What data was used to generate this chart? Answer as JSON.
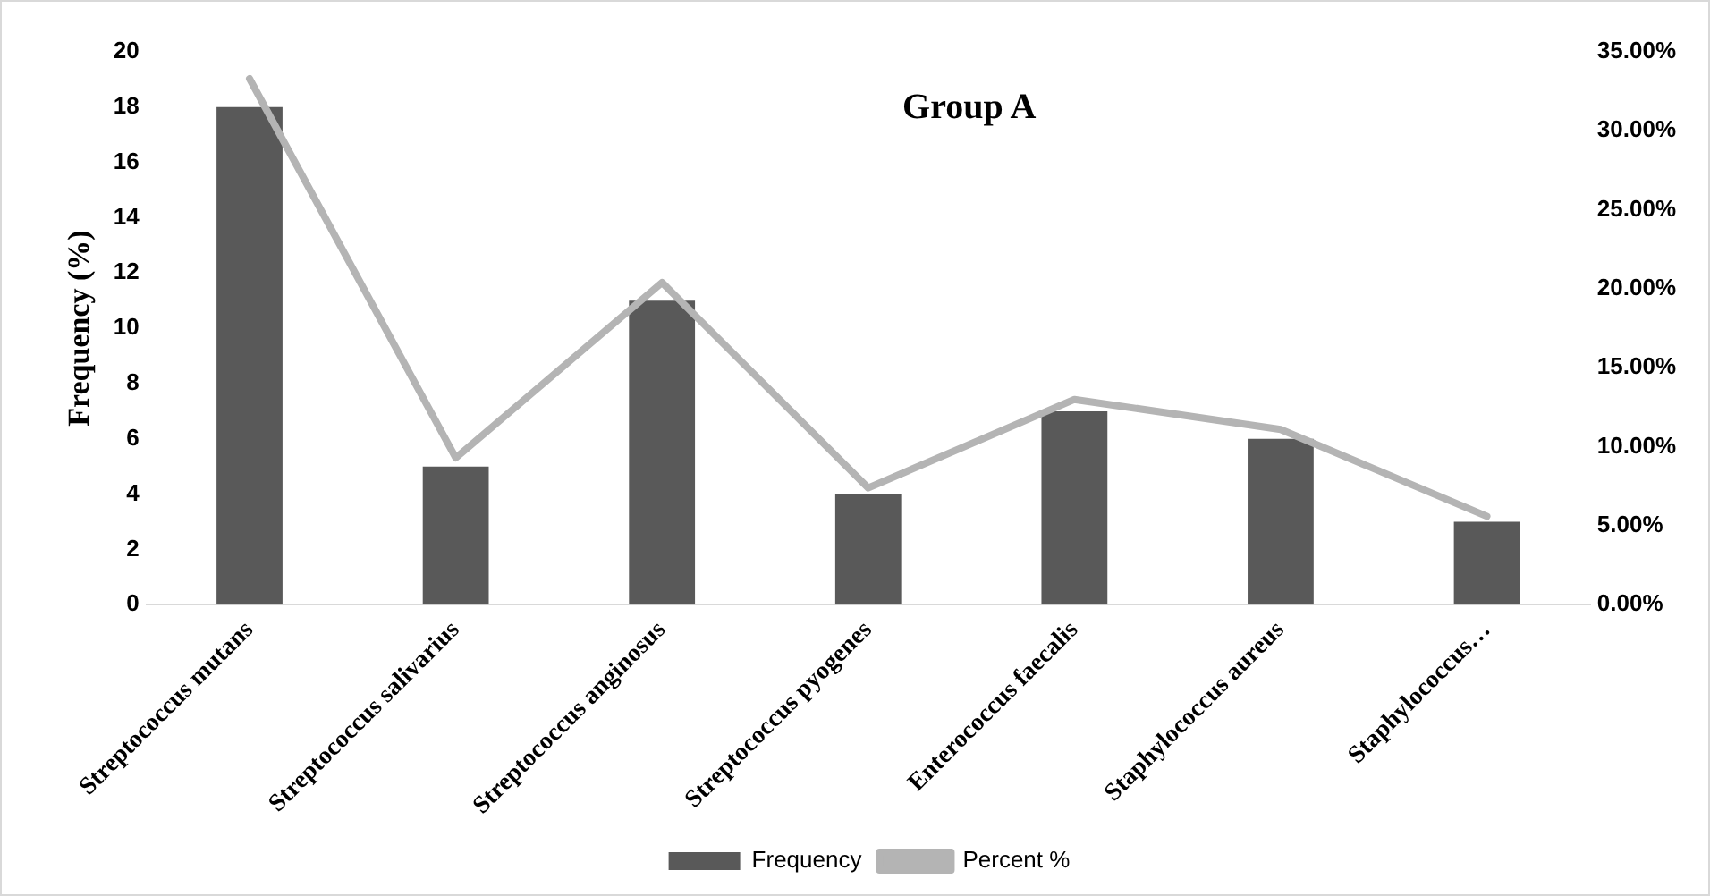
{
  "chart_data": {
    "type": "bar",
    "title": "Group A",
    "ylabel": "Frequency (%)",
    "categories": [
      "Streptococcus mutans",
      "Streptococcus salivarius",
      "Streptococcus anginosus",
      "Streptococcus pyogenes",
      "Enterococcus faecalis",
      "Staphylococcus aureus",
      "Staphylococcus…"
    ],
    "series": [
      {
        "name": "Frequency",
        "color": "#595959",
        "values": [
          18,
          5,
          11,
          4,
          7,
          6,
          3
        ]
      },
      {
        "name": "Percent %",
        "type": "line",
        "axis": "y2",
        "color": "#b4b4b4",
        "values": [
          33.3,
          9.3,
          20.4,
          7.4,
          13.0,
          11.1,
          5.6
        ]
      }
    ],
    "ylim": [
      0,
      20
    ],
    "yticks": [
      0,
      2,
      4,
      6,
      8,
      10,
      12,
      14,
      16,
      18,
      20
    ],
    "y2lim": [
      0,
      35
    ],
    "y2ticks": [
      {
        "value": 0,
        "label": "0.00%"
      },
      {
        "value": 5,
        "label": "5.00%"
      },
      {
        "value": 10,
        "label": "10.00%"
      },
      {
        "value": 15,
        "label": "15.00%"
      },
      {
        "value": 20,
        "label": "20.00%"
      },
      {
        "value": 25,
        "label": "25.00%"
      },
      {
        "value": 30,
        "label": "30.00%"
      },
      {
        "value": 35,
        "label": "35.00%"
      }
    ],
    "grid": false,
    "legend": "bottom",
    "marker": "none"
  }
}
